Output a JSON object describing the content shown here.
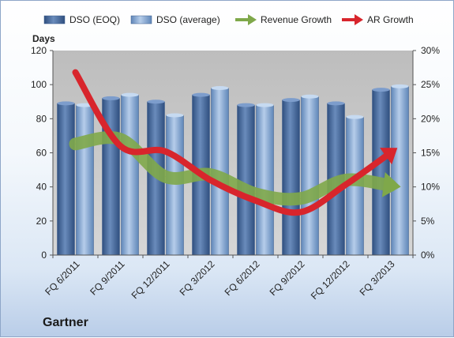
{
  "chart_data": {
    "type": "bar",
    "categories": [
      "FQ 6/2011",
      "FQ 9/2011",
      "FQ 12/2011",
      "FQ 3/2012",
      "FQ 6/2012",
      "FQ 9/2012",
      "FQ 12/2012",
      "FQ 3/2013"
    ],
    "series": [
      {
        "name": "DSO (EOQ)",
        "type": "bar",
        "axis": "left",
        "values": [
          89,
          92,
          90,
          94,
          88,
          91,
          89,
          97
        ]
      },
      {
        "name": "DSO (average)",
        "type": "bar",
        "axis": "left",
        "values": [
          88,
          94,
          82,
          98,
          88,
          93,
          81,
          99
        ]
      },
      {
        "name": "Revenue Growth",
        "type": "line",
        "axis": "right",
        "unit": "%",
        "values": [
          16.3,
          17.0,
          11.5,
          11.8,
          9.0,
          8.3,
          11.0,
          10.2
        ]
      },
      {
        "name": "AR Growth",
        "type": "line",
        "axis": "right",
        "unit": "%",
        "values": [
          26.8,
          16.0,
          15.2,
          11.0,
          8.0,
          6.3,
          10.3,
          15.0
        ]
      }
    ],
    "ylabel": "Days",
    "ylim": [
      0,
      120
    ],
    "yticks": [
      0,
      20,
      40,
      60,
      80,
      100,
      120
    ],
    "y2lim": [
      0,
      30
    ],
    "y2ticks": [
      "0%",
      "5%",
      "10%",
      "15%",
      "20%",
      "25%",
      "30%"
    ],
    "grid": false,
    "legend_position": "top",
    "colors": {
      "dso_eoq": "#4a6a9c",
      "dso_avg": "#8cafd8",
      "revenue_growth": "#7fa84a",
      "ar_growth": "#d8252c",
      "plot_background": "#c8c8c8"
    }
  },
  "footer": {
    "brand": "Gartner"
  }
}
